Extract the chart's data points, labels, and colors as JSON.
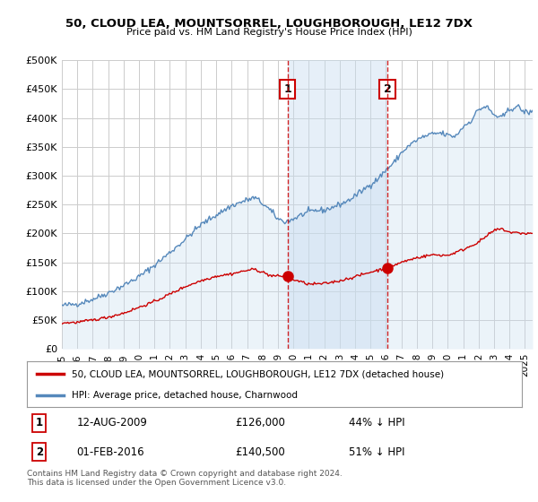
{
  "title": "50, CLOUD LEA, MOUNTSORREL, LOUGHBOROUGH, LE12 7DX",
  "subtitle": "Price paid vs. HM Land Registry's House Price Index (HPI)",
  "property_line_color": "#cc0000",
  "hpi_line_color": "#5588bb",
  "hpi_fill_color": "#c8ddf0",
  "background_color": "#ffffff",
  "grid_color": "#cccccc",
  "ylim": [
    0,
    500000
  ],
  "yticks": [
    0,
    50000,
    100000,
    150000,
    200000,
    250000,
    300000,
    350000,
    400000,
    450000,
    500000
  ],
  "sale1_x": 2009.617,
  "sale1_y": 126000,
  "sale2_x": 2016.083,
  "sale2_y": 140500,
  "legend_entry1": "50, CLOUD LEA, MOUNTSORREL, LOUGHBOROUGH, LE12 7DX (detached house)",
  "legend_entry2": "HPI: Average price, detached house, Charnwood",
  "table_row1": [
    "1",
    "12-AUG-2009",
    "£126,000",
    "44% ↓ HPI"
  ],
  "table_row2": [
    "2",
    "01-FEB-2016",
    "£140,500",
    "51% ↓ HPI"
  ],
  "footnote": "Contains HM Land Registry data © Crown copyright and database right 2024.\nThis data is licensed under the Open Government Licence v3.0.",
  "xmin": 1995.0,
  "xmax": 2025.5,
  "hpi_keypoints_x": [
    1995,
    1996,
    1997,
    1998,
    1999,
    2000,
    2001,
    2002,
    2003,
    2004,
    2005,
    2006,
    2007,
    2007.5,
    2008,
    2008.5,
    2009,
    2009.5,
    2010,
    2010.5,
    2011,
    2011.5,
    2012,
    2013,
    2013.5,
    2014,
    2015,
    2015.5,
    2016,
    2016.5,
    2017,
    2017.5,
    2018,
    2018.5,
    2019,
    2019.5,
    2020,
    2020.5,
    2021,
    2021.5,
    2022,
    2022.5,
    2023,
    2023.5,
    2024,
    2024.5,
    2025
  ],
  "hpi_keypoints_y": [
    75000,
    78000,
    86000,
    97000,
    110000,
    125000,
    145000,
    167000,
    190000,
    215000,
    232000,
    248000,
    258000,
    262000,
    252000,
    240000,
    225000,
    220000,
    225000,
    232000,
    237000,
    240000,
    240000,
    250000,
    256000,
    265000,
    285000,
    295000,
    310000,
    322000,
    340000,
    352000,
    362000,
    368000,
    372000,
    374000,
    370000,
    368000,
    385000,
    395000,
    415000,
    420000,
    405000,
    400000,
    415000,
    420000,
    410000
  ],
  "prop_keypoints_x": [
    1995,
    1996,
    1997,
    1998,
    1999,
    2000,
    2001,
    2002,
    2003,
    2004,
    2005,
    2006,
    2007,
    2007.5,
    2008,
    2008.5,
    2009,
    2009.617,
    2010,
    2010.5,
    2011,
    2012,
    2013,
    2014,
    2015,
    2016.083,
    2017,
    2018,
    2019,
    2020,
    2021,
    2022,
    2022.5,
    2023,
    2023.5,
    2024,
    2025
  ],
  "prop_keypoints_y": [
    45000,
    46000,
    50000,
    55000,
    62000,
    72000,
    82000,
    95000,
    108000,
    118000,
    126000,
    130000,
    136000,
    138000,
    133000,
    127000,
    126000,
    126000,
    120000,
    116000,
    112000,
    113000,
    118000,
    125000,
    133000,
    140500,
    150000,
    158000,
    163000,
    162000,
    172000,
    185000,
    195000,
    205000,
    208000,
    202000,
    200000
  ]
}
